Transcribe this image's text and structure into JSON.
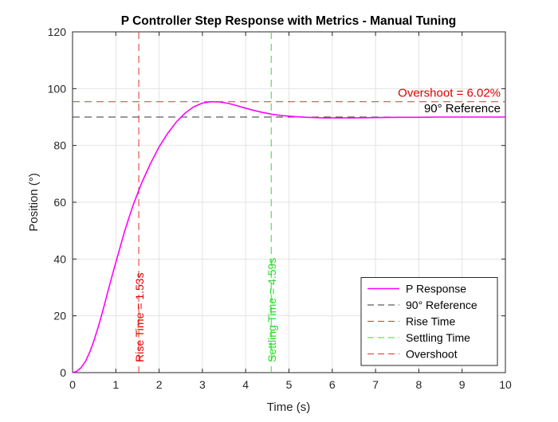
{
  "chart_data": {
    "type": "line",
    "title": "P Controller Step Response with Metrics - Manual Tuning",
    "xlabel": "Time (s)",
    "ylabel": "Position (°)",
    "xlim": [
      0,
      10
    ],
    "ylim": [
      0,
      120
    ],
    "grid": true,
    "xticks": [
      0,
      1,
      2,
      3,
      4,
      5,
      6,
      7,
      8,
      9,
      10
    ],
    "yticks": [
      0,
      20,
      40,
      60,
      80,
      100,
      120
    ],
    "series": [
      {
        "name": "P Response",
        "color": "#ff00ff",
        "style": "solid",
        "x": [
          0,
          0.1,
          0.2,
          0.3,
          0.4,
          0.5,
          0.6,
          0.7,
          0.8,
          0.9,
          1.0,
          1.1,
          1.2,
          1.3,
          1.4,
          1.5,
          1.6,
          1.8,
          2.0,
          2.2,
          2.4,
          2.6,
          2.8,
          3.0,
          3.2,
          3.4,
          3.6,
          3.8,
          4.0,
          4.2,
          4.4,
          4.6,
          4.8,
          5.0,
          5.2,
          5.4,
          5.6,
          5.8,
          6.0,
          6.5,
          7.0,
          7.5,
          8.0,
          8.5,
          9.0,
          9.5,
          10.0
        ],
        "y": [
          0,
          0.5,
          1.8,
          4.0,
          7.3,
          11.5,
          16.4,
          21.8,
          27.6,
          33.3,
          38.8,
          44.2,
          49.6,
          54.4,
          59.0,
          63.0,
          66.9,
          73.6,
          79.5,
          84.3,
          88.3,
          91.4,
          93.6,
          94.9,
          95.4,
          95.3,
          94.8,
          94.0,
          93.1,
          92.3,
          91.6,
          91.0,
          90.6,
          90.3,
          90.1,
          89.9,
          89.8,
          89.7,
          89.7,
          89.7,
          89.8,
          89.9,
          89.9,
          90.0,
          90.0,
          90.0,
          90.0
        ]
      },
      {
        "name": "90° Reference",
        "color": "#333333",
        "style": "dashed",
        "orientation": "horizontal",
        "value": 90
      },
      {
        "name": "Rise Time",
        "color": "#e03030",
        "style": "dashed",
        "orientation": "vertical",
        "value": 1.53
      },
      {
        "name": "Settling Time",
        "color": "#33dd33",
        "style": "dashed",
        "orientation": "vertical",
        "value": 4.59
      },
      {
        "name": "Overshoot",
        "color": "#e03030",
        "style": "dashed",
        "orientation": "horizontal",
        "value": 95.4
      }
    ],
    "annotations": [
      {
        "text": "Overshoot = 6.02%",
        "color": "#e00000",
        "x": 10,
        "y": 95.4,
        "anchor": "end",
        "rotate": false
      },
      {
        "text": "90° Reference",
        "color": "#000000",
        "x": 10,
        "y": 90,
        "anchor": "end",
        "rotate": false
      },
      {
        "text": "Rise Time = 1.53s",
        "color": "#e00000",
        "x": 1.53,
        "y": 2,
        "anchor": "start",
        "rotate": true
      },
      {
        "text": "Settling Time = 4.59s",
        "color": "#22dd22",
        "x": 4.59,
        "y": 2,
        "anchor": "start",
        "rotate": true
      }
    ],
    "legend": {
      "placement": "bottom-right",
      "entries": [
        "P Response",
        "90° Reference",
        "Rise Time",
        "Settling Time",
        "Overshoot"
      ]
    }
  }
}
